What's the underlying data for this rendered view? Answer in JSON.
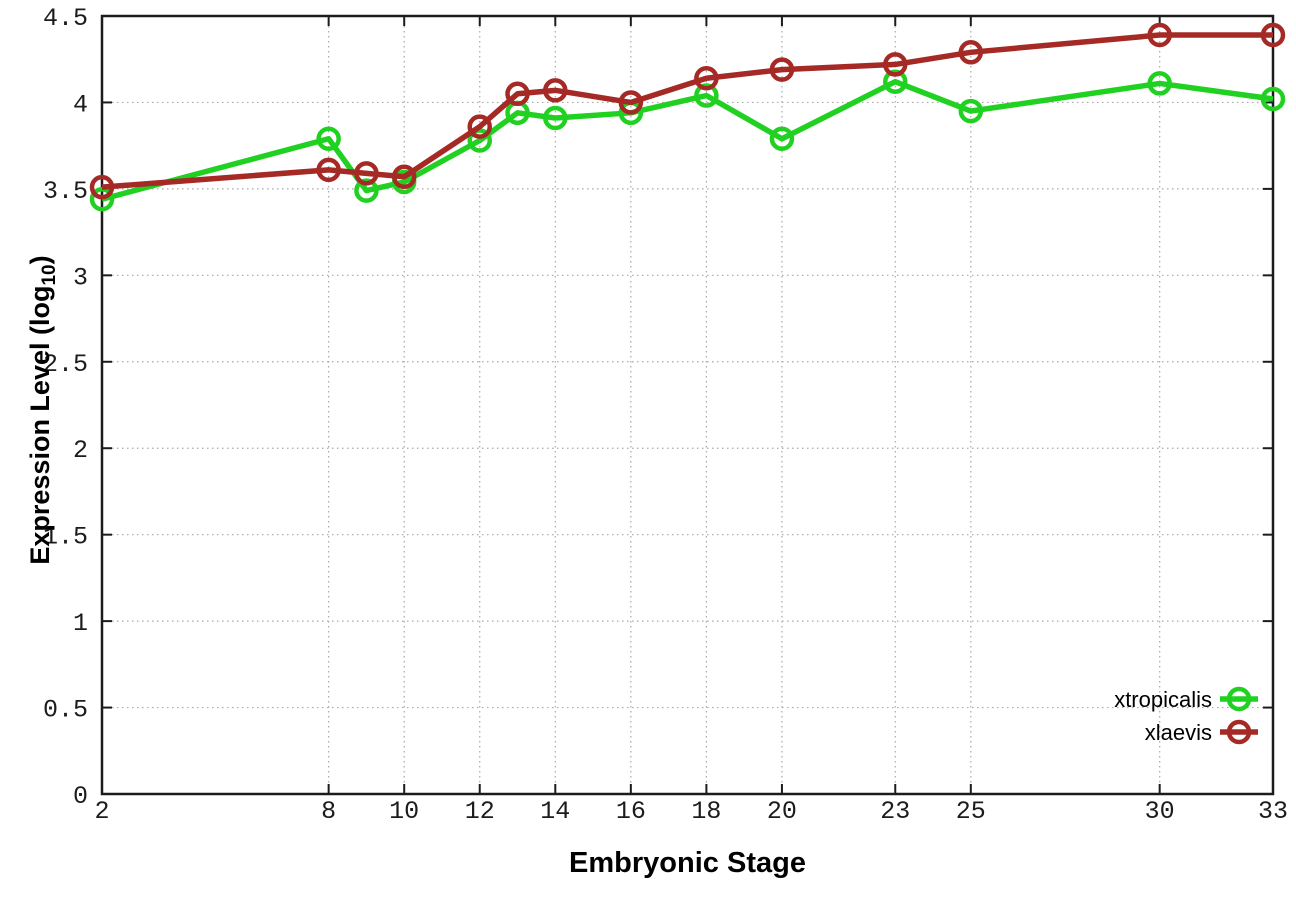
{
  "chart_data": {
    "type": "line",
    "title": "",
    "xlabel": "Embryonic Stage",
    "ylabel": {
      "pre": "Expression Level (log",
      "sub": "10",
      "post": ")"
    },
    "xlim": [
      2,
      33
    ],
    "ylim": [
      0,
      4.5
    ],
    "x": [
      2,
      8,
      9,
      10,
      12,
      13,
      14,
      16,
      18,
      20,
      23,
      25,
      30,
      33
    ],
    "xtick_labels": [
      "2",
      "8",
      "10",
      "12",
      "14",
      "16",
      "18",
      "20",
      "23",
      "25",
      "30",
      "33"
    ],
    "ytick_labels": [
      "0",
      "0.5",
      "1",
      "1.5",
      "2",
      "2.5",
      "3",
      "3.5",
      "4",
      "4.5"
    ],
    "grid": true,
    "legend": {
      "position": "inside-bottom-right",
      "entries": [
        "xtropicalis",
        "xlaevis"
      ]
    },
    "series": [
      {
        "name": "xtropicalis",
        "color": "#21d121",
        "marker": "open-circle",
        "values": [
          3.44,
          3.79,
          3.49,
          3.54,
          3.78,
          3.94,
          3.91,
          3.94,
          4.04,
          3.79,
          4.12,
          3.95,
          4.11,
          4.02
        ]
      },
      {
        "name": "xlaevis",
        "color": "#a52a26",
        "marker": "open-circle",
        "values": [
          3.51,
          3.61,
          3.59,
          3.57,
          3.86,
          4.05,
          4.07,
          4.0,
          4.14,
          4.19,
          4.22,
          4.29,
          4.39,
          4.39
        ]
      }
    ],
    "colors": {
      "axis": "#1c1c1c",
      "grid": "#a8a8a8",
      "tick_text": "#1c1c1c",
      "background": "#ffffff"
    }
  }
}
